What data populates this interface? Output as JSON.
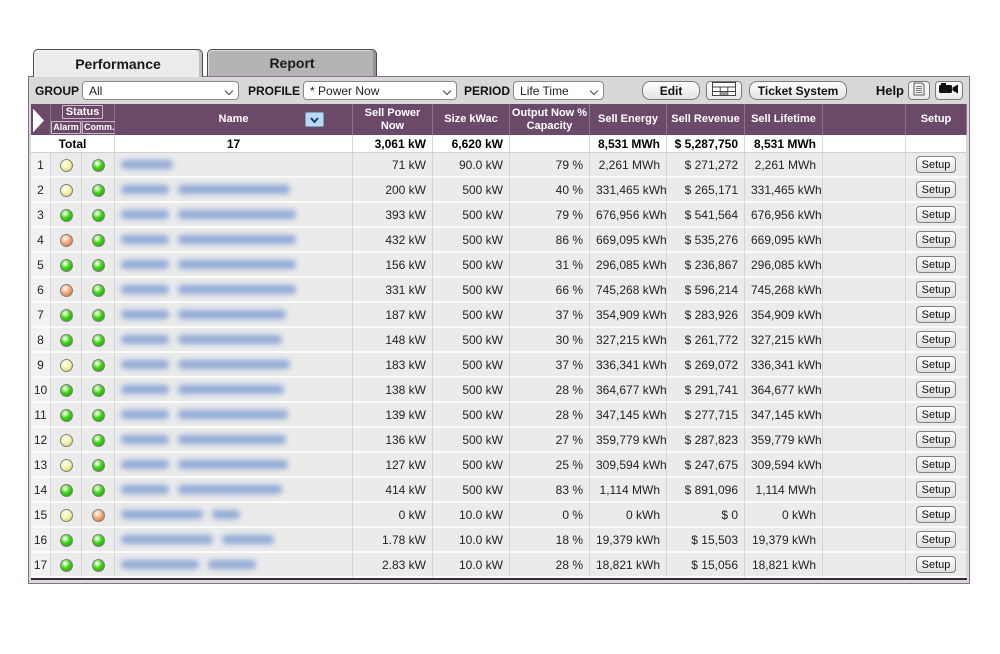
{
  "tabs": [
    {
      "label": "Performance",
      "active": true
    },
    {
      "label": "Report",
      "active": false
    }
  ],
  "toolbar": {
    "group_label": "GROUP",
    "group_value": "All",
    "profile_label": "PROFILE",
    "profile_value": "* Power Now",
    "period_label": "PERIOD",
    "period_value": "Life Time",
    "edit_button": "Edit",
    "grid_button_icon": "table-grid-icon",
    "ticket_button": "Ticket System",
    "help_label": "Help",
    "help_icons": [
      "document-icon",
      "video-camera-icon"
    ]
  },
  "table": {
    "headers": {
      "status": "Status",
      "alarm": "Alarm",
      "comm": "Comm.",
      "name": "Name",
      "sell_power_now": "Sell Power Now",
      "size_kwac": "Size kWac",
      "output_capacity": "Output Now % Capacity",
      "sell_energy": "Sell Energy",
      "sell_revenue": "Sell Revenue",
      "sell_lifetime": "Sell Lifetime",
      "setup": "Setup"
    },
    "total": {
      "label": "Total",
      "count": "17",
      "power": "3,061 kW",
      "size": "6,620 kW",
      "capacity": "",
      "energy": "8,531 MWh",
      "revenue": "$ 5,287,750",
      "lifetime": "8,531 MWh"
    },
    "setup_button": "Setup",
    "rows": [
      {
        "num": "1",
        "alarm": "yellow",
        "comm": "green",
        "name_blobs": [
          52
        ],
        "power": "71 kW",
        "size": "90.0 kW",
        "capacity": "79 %",
        "energy": "2,261 MWh",
        "revenue": "$ 271,272",
        "lifetime": "2,261 MWh"
      },
      {
        "num": "2",
        "alarm": "yellow",
        "comm": "green",
        "name_blobs": [
          48,
          112
        ],
        "power": "200 kW",
        "size": "500 kW",
        "capacity": "40 %",
        "energy": "331,465 kWh",
        "revenue": "$ 265,171",
        "lifetime": "331,465 kWh"
      },
      {
        "num": "3",
        "alarm": "green",
        "comm": "green",
        "name_blobs": [
          48,
          118
        ],
        "power": "393 kW",
        "size": "500 kW",
        "capacity": "79 %",
        "energy": "676,956 kWh",
        "revenue": "$ 541,564",
        "lifetime": "676,956 kWh"
      },
      {
        "num": "4",
        "alarm": "orange",
        "comm": "green",
        "name_blobs": [
          48,
          118
        ],
        "power": "432 kW",
        "size": "500 kW",
        "capacity": "86 %",
        "energy": "669,095 kWh",
        "revenue": "$ 535,276",
        "lifetime": "669,095 kWh"
      },
      {
        "num": "5",
        "alarm": "green",
        "comm": "green",
        "name_blobs": [
          48,
          118
        ],
        "power": "156 kW",
        "size": "500 kW",
        "capacity": "31 %",
        "energy": "296,085 kWh",
        "revenue": "$ 236,867",
        "lifetime": "296,085 kWh"
      },
      {
        "num": "6",
        "alarm": "orange",
        "comm": "green",
        "name_blobs": [
          48,
          118
        ],
        "power": "331 kW",
        "size": "500 kW",
        "capacity": "66 %",
        "energy": "745,268 kWh",
        "revenue": "$ 596,214",
        "lifetime": "745,268 kWh"
      },
      {
        "num": "7",
        "alarm": "green",
        "comm": "green",
        "name_blobs": [
          48,
          108
        ],
        "power": "187 kW",
        "size": "500 kW",
        "capacity": "37 %",
        "energy": "354,909 kWh",
        "revenue": "$ 283,926",
        "lifetime": "354,909 kWh"
      },
      {
        "num": "8",
        "alarm": "green",
        "comm": "green",
        "name_blobs": [
          48,
          104
        ],
        "power": "148 kW",
        "size": "500 kW",
        "capacity": "30 %",
        "energy": "327,215 kWh",
        "revenue": "$ 261,772",
        "lifetime": "327,215 kWh"
      },
      {
        "num": "9",
        "alarm": "yellow",
        "comm": "green",
        "name_blobs": [
          48,
          112
        ],
        "power": "183 kW",
        "size": "500 kW",
        "capacity": "37 %",
        "energy": "336,341 kWh",
        "revenue": "$ 269,072",
        "lifetime": "336,341 kWh"
      },
      {
        "num": "10",
        "alarm": "green",
        "comm": "green",
        "name_blobs": [
          48,
          106
        ],
        "power": "138 kW",
        "size": "500 kW",
        "capacity": "28 %",
        "energy": "364,677 kWh",
        "revenue": "$ 291,741",
        "lifetime": "364,677 kWh"
      },
      {
        "num": "11",
        "alarm": "green",
        "comm": "green",
        "name_blobs": [
          48,
          110
        ],
        "power": "139 kW",
        "size": "500 kW",
        "capacity": "28 %",
        "energy": "347,145 kWh",
        "revenue": "$ 277,715",
        "lifetime": "347,145 kWh"
      },
      {
        "num": "12",
        "alarm": "yellow",
        "comm": "green",
        "name_blobs": [
          48,
          108
        ],
        "power": "136 kW",
        "size": "500 kW",
        "capacity": "27 %",
        "energy": "359,779 kWh",
        "revenue": "$ 287,823",
        "lifetime": "359,779 kWh"
      },
      {
        "num": "13",
        "alarm": "yellow",
        "comm": "green",
        "name_blobs": [
          48,
          110
        ],
        "power": "127 kW",
        "size": "500 kW",
        "capacity": "25 %",
        "energy": "309,594 kWh",
        "revenue": "$ 247,675",
        "lifetime": "309,594 kWh"
      },
      {
        "num": "14",
        "alarm": "green",
        "comm": "green",
        "name_blobs": [
          48,
          104
        ],
        "power": "414 kW",
        "size": "500 kW",
        "capacity": "83 %",
        "energy": "1,114 MWh",
        "revenue": "$ 891,096",
        "lifetime": "1,114 MWh"
      },
      {
        "num": "15",
        "alarm": "yellow",
        "comm": "orange",
        "name_blobs": [
          82,
          28
        ],
        "power": "0 kW",
        "size": "10.0 kW",
        "capacity": "0 %",
        "energy": "0 kWh",
        "revenue": "$ 0",
        "lifetime": "0 kWh"
      },
      {
        "num": "16",
        "alarm": "green",
        "comm": "green",
        "name_blobs": [
          92,
          52
        ],
        "power": "1.78 kW",
        "size": "10.0 kW",
        "capacity": "18 %",
        "energy": "19,379 kWh",
        "revenue": "$ 15,503",
        "lifetime": "19,379 kWh"
      },
      {
        "num": "17",
        "alarm": "green",
        "comm": "green",
        "name_blobs": [
          78,
          48
        ],
        "power": "2.83 kW",
        "size": "10.0 kW",
        "capacity": "28 %",
        "energy": "18,821 kWh",
        "revenue": "$ 15,056",
        "lifetime": "18,821 kWh"
      }
    ]
  },
  "colors": {
    "header_bg": "#6B4968",
    "led_green": "#3ED214",
    "led_yellow": "#F2EFA2",
    "led_orange": "#F0A070",
    "name_blur": "#8FA9D6"
  }
}
